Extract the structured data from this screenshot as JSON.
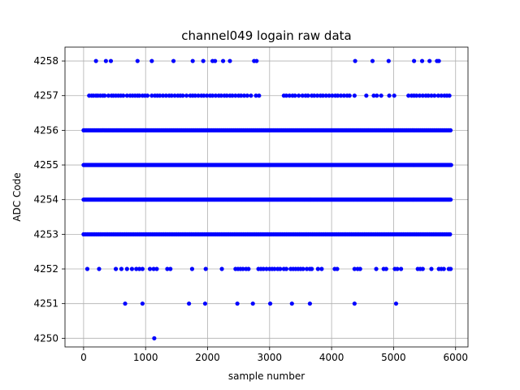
{
  "chart_data": {
    "type": "scatter",
    "title": "channel049 logain raw data",
    "xlabel": "sample number",
    "ylabel": "ADC Code",
    "xlim": [
      -300,
      6200
    ],
    "ylim": [
      4249.75,
      4258.4
    ],
    "xticks": [
      0,
      1000,
      2000,
      3000,
      4000,
      5000,
      6000
    ],
    "yticks": [
      4250,
      4251,
      4252,
      4253,
      4254,
      4255,
      4256,
      4257,
      4258
    ],
    "grid": true,
    "marker_color": "#0000ff",
    "series": [
      {
        "name": "",
        "levels": [
          {
            "y": 4258,
            "x": [
              200,
              360,
              440,
              870,
              1100,
              1450,
              1760,
              1930,
              2080,
              2120,
              2250,
              2360,
              2750,
              2790,
              4380,
              4660,
              4920,
              5330,
              5460,
              5580,
              5700,
              5730
            ]
          },
          {
            "y": 4257,
            "x": [
              90,
              130,
              160,
              200,
              230,
              270,
              310,
              340,
              400,
              450,
              480,
              520,
              560,
              600,
              640,
              700,
              750,
              790,
              830,
              870,
              900,
              950,
              990,
              1030,
              1100,
              1150,
              1190,
              1230,
              1280,
              1330,
              1380,
              1420,
              1470,
              1520,
              1560,
              1600,
              1660,
              1720,
              1760,
              1800,
              1850,
              1900,
              1940,
              1990,
              2040,
              2080,
              2130,
              2180,
              2220,
              2270,
              2310,
              2360,
              2400,
              2450,
              2500,
              2540,
              2590,
              2640,
              2700,
              2780,
              2830,
              3230,
              3270,
              3320,
              3370,
              3410,
              3470,
              3530,
              3580,
              3620,
              3680,
              3720,
              3770,
              3820,
              3860,
              3910,
              3960,
              4010,
              4060,
              4100,
              4150,
              4200,
              4250,
              4290,
              4370,
              4560,
              4680,
              4730,
              4800,
              4930,
              5010,
              5240,
              5290,
              5330,
              5370,
              5420,
              5470,
              5520,
              5560,
              5610,
              5660,
              5720,
              5770,
              5820,
              5860,
              5900
            ]
          },
          {
            "y": 4256,
            "dense": true,
            "x_start": 0,
            "x_end": 5930,
            "step": 22
          },
          {
            "y": 4255,
            "dense": true,
            "x_start": 0,
            "x_end": 5930,
            "step": 12
          },
          {
            "y": 4254,
            "dense": true,
            "x_start": 0,
            "x_end": 5930,
            "step": 16
          },
          {
            "y": 4253,
            "dense": true,
            "x_start": 0,
            "x_end": 5930,
            "step": 30
          },
          {
            "y": 4252,
            "x": [
              60,
              250,
              520,
              610,
              700,
              780,
              850,
              900,
              950,
              1070,
              1130,
              1180,
              1350,
              1400,
              1750,
              1970,
              2230,
              2450,
              2490,
              2530,
              2570,
              2620,
              2660,
              2820,
              2860,
              2900,
              2950,
              3000,
              3040,
              3080,
              3130,
              3170,
              3230,
              3270,
              3340,
              3380,
              3420,
              3460,
              3500,
              3540,
              3600,
              3650,
              3680,
              3780,
              3840,
              4050,
              4090,
              4370,
              4420,
              4460,
              4720,
              4840,
              4880,
              5020,
              5060,
              5120,
              5390,
              5430,
              5470,
              5610,
              5730,
              5770,
              5810,
              5890,
              5920
            ]
          },
          {
            "y": 4251,
            "x": [
              670,
              950,
              1700,
              1960,
              2480,
              2730,
              3010,
              3360,
              3650,
              4370,
              5040
            ]
          },
          {
            "y": 4250,
            "x": [
              1140
            ]
          }
        ]
      }
    ]
  }
}
